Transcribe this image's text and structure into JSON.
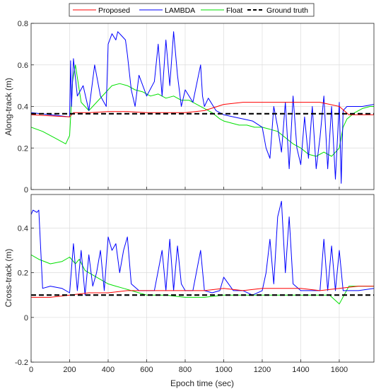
{
  "chart_data": [
    {
      "type": "line",
      "xlabel": "",
      "ylabel": "Along-track (m)",
      "xlim": [
        0,
        1780
      ],
      "ylim": [
        0,
        0.8
      ],
      "xticks": [
        0,
        200,
        400,
        600,
        800,
        1000,
        1200,
        1400,
        1600
      ],
      "yticks": [
        0,
        0.2,
        0.4,
        0.6,
        0.8
      ],
      "ytick_labels": [
        "0",
        "0.2",
        "0.4",
        "0.6",
        "0.8"
      ],
      "xtick_labels": [
        "",
        "",
        "",
        "",
        "",
        "",
        "",
        "",
        ""
      ],
      "grid": true,
      "series": [
        {
          "name": "Float",
          "color": "#00e000",
          "x": [
            0,
            60,
            120,
            180,
            200,
            215,
            230,
            260,
            300,
            340,
            380,
            420,
            460,
            500,
            540,
            580,
            620,
            660,
            700,
            740,
            780,
            820,
            860,
            900,
            940,
            980,
            1000,
            1040,
            1080,
            1120,
            1160,
            1200,
            1240,
            1280,
            1320,
            1360,
            1400,
            1440,
            1480,
            1520,
            1560,
            1600,
            1620,
            1640,
            1680,
            1720,
            1760,
            1780
          ],
          "y": [
            0.3,
            0.28,
            0.25,
            0.22,
            0.26,
            0.52,
            0.6,
            0.42,
            0.38,
            0.42,
            0.46,
            0.5,
            0.51,
            0.5,
            0.48,
            0.47,
            0.45,
            0.46,
            0.44,
            0.45,
            0.43,
            0.43,
            0.41,
            0.39,
            0.37,
            0.34,
            0.33,
            0.32,
            0.31,
            0.31,
            0.3,
            0.3,
            0.29,
            0.28,
            0.25,
            0.22,
            0.2,
            0.17,
            0.16,
            0.18,
            0.16,
            0.2,
            0.3,
            0.34,
            0.37,
            0.39,
            0.4,
            0.4
          ]
        },
        {
          "name": "LAMBDA",
          "color": "#0000ff",
          "x": [
            0,
            100,
            200,
            205,
            210,
            220,
            240,
            270,
            300,
            330,
            360,
            390,
            400,
            420,
            440,
            450,
            470,
            490,
            500,
            520,
            540,
            560,
            600,
            640,
            660,
            680,
            700,
            720,
            740,
            760,
            780,
            800,
            840,
            880,
            890,
            900,
            920,
            960,
            1000,
            1050,
            1100,
            1150,
            1200,
            1220,
            1240,
            1260,
            1280,
            1300,
            1320,
            1340,
            1360,
            1380,
            1400,
            1420,
            1440,
            1460,
            1480,
            1500,
            1520,
            1540,
            1560,
            1580,
            1600,
            1610,
            1620,
            1640,
            1680,
            1720,
            1780
          ],
          "y": [
            0.37,
            0.36,
            0.35,
            0.62,
            0.4,
            0.63,
            0.45,
            0.5,
            0.38,
            0.6,
            0.45,
            0.4,
            0.7,
            0.75,
            0.72,
            0.76,
            0.74,
            0.72,
            0.65,
            0.48,
            0.4,
            0.55,
            0.45,
            0.52,
            0.7,
            0.45,
            0.72,
            0.5,
            0.76,
            0.55,
            0.4,
            0.48,
            0.42,
            0.6,
            0.45,
            0.4,
            0.44,
            0.38,
            0.36,
            0.35,
            0.34,
            0.33,
            0.3,
            0.2,
            0.15,
            0.4,
            0.3,
            0.18,
            0.42,
            0.1,
            0.45,
            0.2,
            0.12,
            0.35,
            0.15,
            0.4,
            0.1,
            0.25,
            0.45,
            0.1,
            0.4,
            0.05,
            0.42,
            0.03,
            0.38,
            0.4,
            0.4,
            0.4,
            0.41
          ]
        },
        {
          "name": "Proposed",
          "color": "#ff0000",
          "x": [
            0,
            100,
            200,
            220,
            300,
            400,
            500,
            600,
            700,
            800,
            900,
            1000,
            1100,
            1200,
            1300,
            1400,
            1500,
            1600,
            1650,
            1700,
            1780
          ],
          "y": [
            0.36,
            0.355,
            0.35,
            0.37,
            0.37,
            0.375,
            0.375,
            0.37,
            0.37,
            0.37,
            0.38,
            0.41,
            0.42,
            0.42,
            0.42,
            0.42,
            0.42,
            0.4,
            0.36,
            0.36,
            0.36
          ]
        },
        {
          "name": "Ground truth",
          "color": "#000000",
          "dashed": true,
          "x": [
            0,
            1780
          ],
          "y": [
            0.365,
            0.365
          ]
        }
      ]
    },
    {
      "type": "line",
      "xlabel": "Epoch time (sec)",
      "ylabel": "Cross-track (m)",
      "xlim": [
        0,
        1780
      ],
      "ylim": [
        -0.2,
        0.55
      ],
      "xticks": [
        0,
        200,
        400,
        600,
        800,
        1000,
        1200,
        1400,
        1600
      ],
      "yticks": [
        -0.2,
        0,
        0.2,
        0.4
      ],
      "ytick_labels": [
        "-0.2",
        "0",
        "0.2",
        "0.4"
      ],
      "xtick_labels": [
        "0",
        "200",
        "400",
        "600",
        "800",
        "1000",
        "1200",
        "1400",
        "1600"
      ],
      "grid": true,
      "series": [
        {
          "name": "Float",
          "color": "#00e000",
          "x": [
            0,
            40,
            100,
            160,
            200,
            230,
            250,
            280,
            320,
            360,
            400,
            440,
            480,
            520,
            560,
            600,
            700,
            800,
            900,
            1000,
            1100,
            1200,
            1300,
            1400,
            1500,
            1550,
            1600,
            1650,
            1700,
            1780
          ],
          "y": [
            0.28,
            0.26,
            0.24,
            0.25,
            0.27,
            0.24,
            0.26,
            0.21,
            0.19,
            0.17,
            0.15,
            0.14,
            0.13,
            0.12,
            0.11,
            0.1,
            0.1,
            0.09,
            0.09,
            0.1,
            0.1,
            0.1,
            0.1,
            0.1,
            0.1,
            0.1,
            0.06,
            0.14,
            0.14,
            0.14
          ]
        },
        {
          "name": "LAMBDA",
          "color": "#0000ff",
          "x": [
            0,
            10,
            30,
            40,
            60,
            100,
            160,
            200,
            220,
            240,
            260,
            280,
            300,
            320,
            340,
            360,
            380,
            400,
            420,
            440,
            460,
            480,
            500,
            520,
            560,
            600,
            640,
            680,
            700,
            720,
            740,
            760,
            780,
            800,
            840,
            880,
            900,
            940,
            980,
            1000,
            1050,
            1100,
            1150,
            1200,
            1220,
            1240,
            1260,
            1280,
            1300,
            1320,
            1340,
            1360,
            1400,
            1450,
            1500,
            1520,
            1540,
            1560,
            1580,
            1600,
            1620,
            1650,
            1700,
            1780
          ],
          "y": [
            0.46,
            0.48,
            0.47,
            0.48,
            0.13,
            0.14,
            0.13,
            0.11,
            0.33,
            0.12,
            0.3,
            0.1,
            0.28,
            0.14,
            0.2,
            0.3,
            0.12,
            0.36,
            0.3,
            0.33,
            0.2,
            0.3,
            0.36,
            0.15,
            0.12,
            0.12,
            0.12,
            0.3,
            0.12,
            0.35,
            0.12,
            0.32,
            0.15,
            0.12,
            0.12,
            0.3,
            0.12,
            0.11,
            0.12,
            0.18,
            0.12,
            0.12,
            0.1,
            0.12,
            0.2,
            0.35,
            0.15,
            0.45,
            0.52,
            0.2,
            0.45,
            0.15,
            0.12,
            0.12,
            0.12,
            0.35,
            0.12,
            0.32,
            0.12,
            0.3,
            0.12,
            0.12,
            0.12,
            0.13
          ]
        },
        {
          "name": "Proposed",
          "color": "#ff0000",
          "x": [
            0,
            100,
            200,
            300,
            400,
            500,
            600,
            700,
            800,
            900,
            1000,
            1100,
            1200,
            1300,
            1400,
            1500,
            1600,
            1700,
            1780
          ],
          "y": [
            0.09,
            0.09,
            0.1,
            0.11,
            0.11,
            0.12,
            0.12,
            0.12,
            0.12,
            0.12,
            0.13,
            0.12,
            0.13,
            0.13,
            0.13,
            0.12,
            0.13,
            0.14,
            0.14
          ]
        },
        {
          "name": "Ground truth",
          "color": "#000000",
          "dashed": true,
          "x": [
            0,
            1780
          ],
          "y": [
            0.1,
            0.1
          ]
        }
      ]
    }
  ],
  "legend": {
    "placement": "top-center",
    "entries": [
      {
        "label": "Proposed",
        "color": "#ff0000",
        "dashed": false
      },
      {
        "label": "LAMBDA",
        "color": "#0000ff",
        "dashed": false
      },
      {
        "label": "Float",
        "color": "#00e000",
        "dashed": false
      },
      {
        "label": "Ground truth",
        "color": "#000000",
        "dashed": true
      }
    ]
  }
}
